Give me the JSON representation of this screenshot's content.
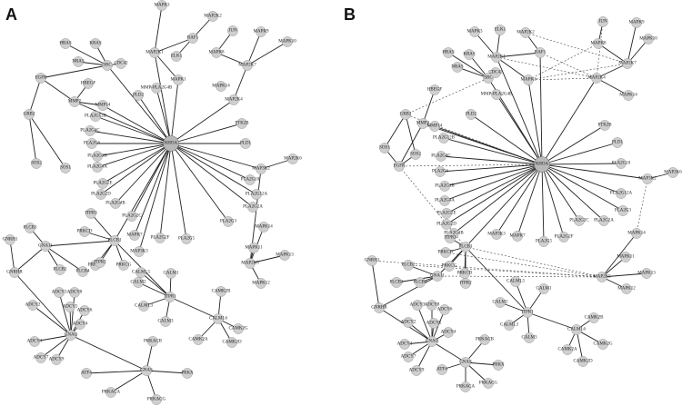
{
  "panels": [
    {
      "id": "A",
      "label": "A"
    },
    {
      "id": "B",
      "label": "B"
    }
  ],
  "node_labels": {
    "MAPK3": "MAPK3",
    "MAPK2K2": "MAP2K2",
    "RAF1": "RAF1",
    "MAPK2K1": "MAP2K1",
    "ELK1": "ELK1",
    "MAPK1": "MAPK1",
    "JUN": "JUN",
    "MAPK9": "MAPK9",
    "MAPK10": "MAPK10",
    "MAPK8": "MAPK8",
    "MAP2K7": "MAP2K7",
    "MAP2K4": "MAP2K4",
    "MAPK14": "MAPK14",
    "HRAS": "HRAS",
    "KRAS": "KRAS",
    "NRAS": "NRAS",
    "SRC": "SRC",
    "CDC42": "CDC42",
    "EGFR": "EGFR",
    "HBEGF": "HBEGF",
    "MMP2": "MMP2",
    "GRB2": "GRB2",
    "SOS2": "SOS2",
    "SOS1": "SOS1",
    "MMP14": "MMP14",
    "PLD2": "PLD2",
    "RHOA": "RHOA",
    "PLD1": "PLD1",
    "MMP_PLA2G4B": "MMP-PLA2G4B",
    "PLA2G12B": "PLA2G12B",
    "PLA2G4C": "PLA2G4C",
    "PLA2G6": "PLA2G6",
    "PLA2G1B": "PLA2G1B",
    "PLA2G4A": "PLA2G4A",
    "PLA2G2E": "PLA2G2E",
    "PLA2G2D": "PLA2G2D",
    "PLA2G3": "PLA2G3",
    "PLA2G5": "PLA2G5",
    "PLA2G2C": "PLA2G2C",
    "PLA2G10": "PLA2G10",
    "PLA2G12A": "PLA2G12A",
    "PLA2G2A": "PLA2G2A",
    "PLA2G2F": "PLA2G2F",
    "PLA2G4B": "PLA2G4B",
    "PTK2B": "PTK2B",
    "MAPK7": "MAPK7",
    "MAP2K6": "MAP2K6",
    "MAPK3K": "MAP3K3",
    "MAP3K2": "MAP3K2",
    "MAPK13": "MAPK13",
    "MAPK11": "MAPK11",
    "MAPK12": "MAPK12",
    "MAP2K5": "MAP2K5",
    "ITPR3": "ITPR3",
    "PRKCD": "PRKCD",
    "PLCB1": "PLCB1",
    "PRKCB": "PRKCB",
    "PRKCG": "PRKCG",
    "PLCB2": "PLCB2",
    "PLCB4": "PLCB4",
    "PLCB3": "PLCB3",
    "GNAQ": "GNAQ",
    "GNA11": "GNA11",
    "ITPR2": "ITPR2",
    "ITPR1": "ITPR1",
    "CALML5": "CALML5",
    "CALM1": "CALM1",
    "CALM2": "CALM2",
    "CALML3": "CALML3",
    "CALM3": "CALM3",
    "CALML6": "CALML6",
    "CAMK2B": "CAMK2B",
    "CAMK2G": "CAMK2G",
    "CAMK2A": "CAMK2A",
    "CAMK2D": "CAMK2D",
    "GNRHR": "GNRHR",
    "GNRH1": "GNRH1",
    "ADCY3": "ADCY3",
    "ADCY8": "ADCY8",
    "ADCY6": "ADCY6",
    "ADCY5": "ADCY5",
    "ADCY2": "ADCY2",
    "ADCY4": "ADCY4",
    "ADCY1": "ADCY1",
    "ADCY7": "ADCY7",
    "ADCY9": "ADCY9",
    "PRKACB": "PRKACB",
    "PRKACA": "PRKACA",
    "PRKX": "PRKX",
    "PRKACG": "PRKACG",
    "ATF4": "ATF4",
    "GNAS": "GNAS"
  }
}
